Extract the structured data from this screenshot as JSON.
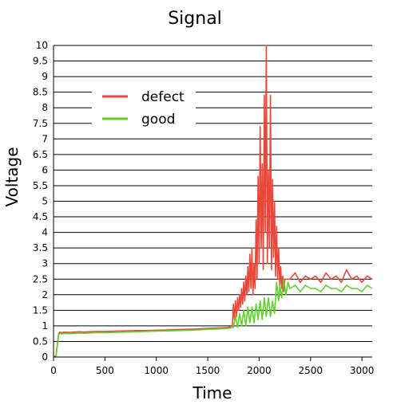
{
  "chart_data": {
    "type": "line",
    "title": "Signal",
    "xlabel": "Time",
    "ylabel": "Voltage",
    "xlim": [
      0,
      3100
    ],
    "ylim": [
      0,
      10
    ],
    "x_ticks": [
      0,
      500,
      1000,
      1500,
      2000,
      2500,
      3000
    ],
    "x_tick_labels": [
      "0",
      "500",
      "1000",
      "1500",
      "2000",
      "2500",
      "3000"
    ],
    "y_ticks": [
      0,
      0.5,
      1,
      1.5,
      2,
      2.5,
      3,
      3.5,
      4,
      4.5,
      5,
      5.5,
      6,
      6.5,
      7,
      7.5,
      8,
      8.5,
      9,
      9.5,
      10
    ],
    "y_tick_labels": [
      "0",
      "0.5",
      "1",
      "1.5",
      "2",
      "2.5",
      "3",
      "3.5",
      "4",
      "4.5",
      "5",
      "5.5",
      "6",
      "6.5",
      "7",
      "7.5",
      "8",
      "8.5",
      "9",
      "9.5",
      "10"
    ],
    "grid": "horizontal",
    "legend_position": "top-left",
    "series": [
      {
        "name": "defect",
        "color": "#e8473a",
        "x": [
          0,
          25,
          50,
          60,
          80,
          100,
          150,
          200,
          250,
          300,
          400,
          500,
          600,
          700,
          800,
          900,
          1000,
          1100,
          1200,
          1300,
          1400,
          1500,
          1600,
          1700,
          1740,
          1750,
          1760,
          1770,
          1780,
          1790,
          1800,
          1810,
          1820,
          1830,
          1840,
          1850,
          1860,
          1870,
          1880,
          1890,
          1900,
          1910,
          1920,
          1930,
          1940,
          1950,
          1960,
          1970,
          1980,
          1990,
          2000,
          2010,
          2020,
          2030,
          2040,
          2050,
          2060,
          2070,
          2080,
          2090,
          2100,
          2110,
          2120,
          2130,
          2140,
          2150,
          2160,
          2170,
          2180,
          2190,
          2200,
          2210,
          2220,
          2230,
          2240,
          2250,
          2300,
          2350,
          2400,
          2450,
          2500,
          2550,
          2600,
          2650,
          2700,
          2750,
          2800,
          2850,
          2900,
          2950,
          3000,
          3050,
          3100
        ],
        "y": [
          0,
          0.05,
          0.75,
          0.8,
          0.78,
          0.8,
          0.79,
          0.8,
          0.81,
          0.8,
          0.82,
          0.82,
          0.83,
          0.84,
          0.85,
          0.85,
          0.86,
          0.87,
          0.88,
          0.89,
          0.9,
          0.92,
          0.93,
          0.95,
          1.0,
          1.7,
          1.2,
          1.8,
          1.3,
          1.9,
          1.5,
          2.0,
          1.6,
          2.2,
          1.7,
          2.4,
          1.8,
          2.6,
          2.0,
          2.9,
          2.1,
          3.3,
          2.2,
          3.5,
          2.0,
          3.0,
          2.2,
          4.4,
          2.5,
          5.8,
          3.0,
          7.4,
          3.5,
          6.2,
          2.8,
          8.4,
          4.0,
          10.0,
          3.0,
          6.0,
          3.5,
          8.4,
          2.8,
          5.7,
          3.2,
          5.0,
          2.6,
          4.2,
          2.5,
          3.5,
          2.3,
          2.9,
          2.2,
          2.6,
          2.1,
          2.5,
          2.5,
          2.7,
          2.4,
          2.6,
          2.5,
          2.6,
          2.4,
          2.7,
          2.5,
          2.6,
          2.4,
          2.8,
          2.5,
          2.6,
          2.4,
          2.6,
          2.5
        ]
      },
      {
        "name": "good",
        "color": "#5fd12d",
        "x": [
          0,
          25,
          50,
          60,
          80,
          100,
          150,
          200,
          250,
          300,
          400,
          500,
          600,
          700,
          800,
          900,
          1000,
          1100,
          1200,
          1300,
          1400,
          1500,
          1600,
          1700,
          1750,
          1770,
          1790,
          1810,
          1830,
          1850,
          1870,
          1890,
          1910,
          1930,
          1950,
          1970,
          1990,
          2010,
          2030,
          2050,
          2070,
          2090,
          2110,
          2130,
          2150,
          2170,
          2190,
          2200,
          2220,
          2240,
          2260,
          2280,
          2300,
          2350,
          2400,
          2450,
          2500,
          2550,
          2600,
          2650,
          2700,
          2750,
          2800,
          2850,
          2900,
          2950,
          3000,
          3050,
          3100
        ],
        "y": [
          0,
          0.02,
          0.72,
          0.76,
          0.74,
          0.76,
          0.75,
          0.76,
          0.77,
          0.76,
          0.78,
          0.78,
          0.79,
          0.8,
          0.81,
          0.82,
          0.83,
          0.84,
          0.85,
          0.86,
          0.87,
          0.89,
          0.9,
          0.92,
          0.95,
          1.3,
          0.95,
          1.4,
          1.0,
          1.5,
          1.0,
          1.6,
          1.1,
          1.6,
          1.1,
          1.7,
          1.2,
          1.8,
          1.2,
          1.9,
          1.3,
          1.9,
          1.3,
          1.8,
          1.4,
          2.4,
          1.8,
          2.3,
          1.9,
          2.5,
          2.0,
          2.4,
          2.2,
          2.3,
          2.1,
          2.3,
          2.2,
          2.2,
          2.1,
          2.3,
          2.2,
          2.2,
          2.1,
          2.3,
          2.2,
          2.2,
          2.1,
          2.3,
          2.2
        ]
      }
    ]
  }
}
